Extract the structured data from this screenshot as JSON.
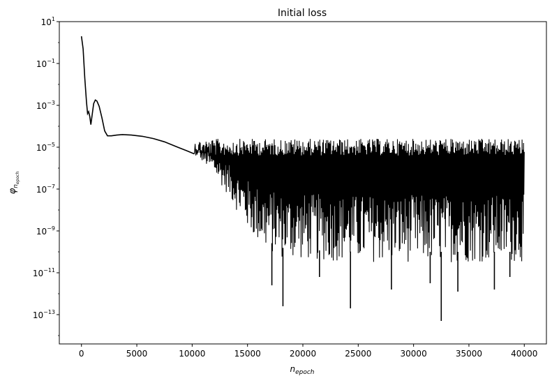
{
  "chart_data": {
    "type": "line",
    "title": "Initial loss",
    "xlabel": {
      "base": "n",
      "subscript": "epoch"
    },
    "ylabel": {
      "base": "φ",
      "subscript_base": "n",
      "subscript_sub": "epoch"
    },
    "xlim": [
      -2000,
      42000
    ],
    "ylim_log10": [
      -14.4,
      1.0
    ],
    "yscale": "log",
    "grid": false,
    "legend": "none",
    "x_ticks": [
      0,
      5000,
      10000,
      15000,
      20000,
      25000,
      30000,
      35000,
      40000
    ],
    "x_tick_labels": [
      "0",
      "5000",
      "10000",
      "15000",
      "20000",
      "25000",
      "30000",
      "35000",
      "40000"
    ],
    "y_ticks_exp": [
      1,
      -1,
      -3,
      -5,
      -7,
      -9,
      -11,
      -13
    ],
    "series": [
      {
        "color": "#000000",
        "smooth_points": [
          [
            0,
            2.0
          ],
          [
            150,
            0.5
          ],
          [
            300,
            0.02
          ],
          [
            450,
            0.0015
          ],
          [
            550,
            0.0004
          ],
          [
            650,
            0.0005
          ],
          [
            750,
            0.0003
          ],
          [
            850,
            0.00012
          ],
          [
            950,
            0.0003
          ],
          [
            1100,
            0.0012
          ],
          [
            1250,
            0.0018
          ],
          [
            1400,
            0.0016
          ],
          [
            1600,
            0.0009
          ],
          [
            1850,
            0.00025
          ],
          [
            2100,
            6e-05
          ],
          [
            2350,
            3.5e-05
          ],
          [
            2700,
            3.5e-05
          ],
          [
            3200,
            3.8e-05
          ],
          [
            3700,
            4e-05
          ],
          [
            4500,
            3.8e-05
          ],
          [
            5500,
            3.3e-05
          ],
          [
            6500,
            2.6e-05
          ],
          [
            7500,
            1.8e-05
          ],
          [
            8500,
            1.1e-05
          ],
          [
            9500,
            6.8e-06
          ],
          [
            10200,
            4.8e-06
          ]
        ],
        "oscillation": {
          "x_start": 10200,
          "x_end": 40000,
          "upper_log10": -4.6,
          "lower_envelope_log10": [
            [
              10200,
              -5.3
            ],
            [
              12000,
              -6.3
            ],
            [
              13500,
              -7.5
            ],
            [
              14500,
              -8.5
            ],
            [
              15500,
              -9.3
            ],
            [
              16500,
              -9.9
            ],
            [
              18000,
              -10.3
            ],
            [
              20000,
              -10.4
            ],
            [
              25000,
              -10.5
            ],
            [
              30000,
              -10.5
            ],
            [
              35000,
              -10.5
            ],
            [
              40000,
              -10.5
            ]
          ],
          "spikes": [
            [
              17200,
              -11.6
            ],
            [
              18200,
              -12.6
            ],
            [
              21500,
              -11.2
            ],
            [
              24300,
              -12.7
            ],
            [
              28000,
              -11.8
            ],
            [
              31500,
              -11.5
            ],
            [
              32500,
              -13.3
            ],
            [
              34000,
              -11.9
            ],
            [
              37300,
              -11.8
            ],
            [
              38700,
              -11.2
            ]
          ]
        }
      }
    ]
  }
}
